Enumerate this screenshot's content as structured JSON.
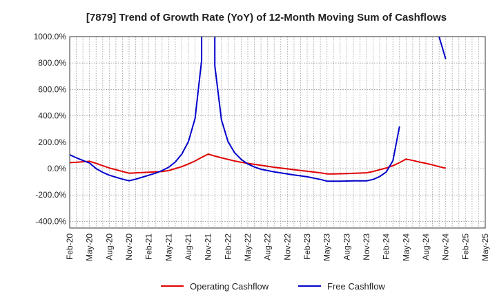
{
  "chart_data": {
    "type": "line",
    "title": "[7879]  Trend of Growth Rate (YoY) of 12-Month Moving Sum of Cashflows",
    "xlabel": "",
    "ylabel": "",
    "x_ticks": [
      "Feb-20",
      "May-20",
      "Aug-20",
      "Nov-20",
      "Feb-21",
      "May-21",
      "Aug-21",
      "Nov-21",
      "Feb-22",
      "May-22",
      "Aug-22",
      "Nov-22",
      "Feb-23",
      "May-23",
      "Aug-23",
      "Nov-23",
      "Feb-24",
      "May-24",
      "Aug-24",
      "Nov-24",
      "Feb-25",
      "May-25"
    ],
    "y_ticks": [
      "1000.0%",
      "800.0%",
      "600.0%",
      "400.0%",
      "200.0%",
      "0.0%",
      "-200.0%",
      "-400.0%"
    ],
    "ylim": [
      -450,
      1000
    ],
    "grid": true,
    "legend_position": "bottom",
    "series": [
      {
        "name": "Operating Cashflow",
        "color": "#e00000",
        "points": [
          [
            "Feb-20",
            45
          ],
          [
            "Mar-20",
            48
          ],
          [
            "Apr-20",
            52
          ],
          [
            "May-20",
            55
          ],
          [
            "Jun-20",
            40
          ],
          [
            "Jul-20",
            22
          ],
          [
            "Aug-20",
            5
          ],
          [
            "Sep-20",
            -8
          ],
          [
            "Oct-20",
            -22
          ],
          [
            "Nov-20",
            -35
          ],
          [
            "Dec-20",
            -33
          ],
          [
            "Jan-21",
            -30
          ],
          [
            "Feb-21",
            -27
          ],
          [
            "Mar-21",
            -25
          ],
          [
            "Apr-21",
            -22
          ],
          [
            "May-21",
            -15
          ],
          [
            "Jun-21",
            0
          ],
          [
            "Jul-21",
            15
          ],
          [
            "Aug-21",
            35
          ],
          [
            "Sep-21",
            58
          ],
          [
            "Oct-21",
            85
          ],
          [
            "Nov-21",
            110
          ],
          [
            "Dec-21",
            95
          ],
          [
            "Jan-22",
            82
          ],
          [
            "Feb-22",
            70
          ],
          [
            "Mar-22",
            58
          ],
          [
            "Apr-22",
            48
          ],
          [
            "May-22",
            40
          ],
          [
            "Jun-22",
            32
          ],
          [
            "Jul-22",
            25
          ],
          [
            "Aug-22",
            18
          ],
          [
            "Sep-22",
            10
          ],
          [
            "Oct-22",
            4
          ],
          [
            "Nov-22",
            -2
          ],
          [
            "Dec-22",
            -8
          ],
          [
            "Jan-23",
            -14
          ],
          [
            "Feb-23",
            -20
          ],
          [
            "Mar-23",
            -26
          ],
          [
            "Apr-23",
            -32
          ],
          [
            "May-23",
            -40
          ],
          [
            "Jun-23",
            -40
          ],
          [
            "Jul-23",
            -39
          ],
          [
            "Aug-23",
            -38
          ],
          [
            "Sep-23",
            -36
          ],
          [
            "Oct-23",
            -34
          ],
          [
            "Nov-23",
            -32
          ],
          [
            "Dec-23",
            -22
          ],
          [
            "Jan-24",
            -8
          ],
          [
            "Feb-24",
            5
          ],
          [
            "Mar-24",
            22
          ],
          [
            "Apr-24",
            45
          ],
          [
            "May-24",
            72
          ],
          [
            "Jun-24",
            62
          ],
          [
            "Jul-24",
            50
          ],
          [
            "Aug-24",
            40
          ],
          [
            "Sep-24",
            28
          ],
          [
            "Oct-24",
            15
          ],
          [
            "Nov-24",
            3
          ]
        ]
      },
      {
        "name": "Free Cashflow",
        "color": "#0000cc",
        "segments": [
          [
            [
              "Feb-20",
              105
            ],
            [
              "Mar-20",
              82
            ],
            [
              "Apr-20",
              62
            ],
            [
              "May-20",
              42
            ],
            [
              "Jun-20",
              0
            ],
            [
              "Jul-20",
              -28
            ],
            [
              "Aug-20",
              -50
            ],
            [
              "Sep-20",
              -65
            ],
            [
              "Oct-20",
              -80
            ],
            [
              "Nov-20",
              -92
            ],
            [
              "Dec-20",
              -80
            ],
            [
              "Jan-21",
              -65
            ],
            [
              "Feb-21",
              -50
            ],
            [
              "Mar-21",
              -35
            ],
            [
              "Apr-21",
              -15
            ],
            [
              "May-21",
              10
            ],
            [
              "Jun-21",
              50
            ],
            [
              "Jul-21",
              110
            ],
            [
              "Aug-21",
              205
            ],
            [
              "Sep-21",
              380
            ],
            [
              "Oct-21",
              820
            ],
            [
              "Oct-21",
              1000
            ]
          ],
          [
            [
              "Dec-21",
              1000
            ],
            [
              "Dec-21",
              780
            ],
            [
              "Jan-22",
              370
            ],
            [
              "Feb-22",
              205
            ],
            [
              "Mar-22",
              120
            ],
            [
              "Apr-22",
              70
            ],
            [
              "May-22",
              35
            ],
            [
              "Jun-22",
              12
            ],
            [
              "Jul-22",
              -5
            ],
            [
              "Aug-22",
              -15
            ],
            [
              "Sep-22",
              -25
            ],
            [
              "Oct-22",
              -33
            ],
            [
              "Nov-22",
              -40
            ],
            [
              "Dec-22",
              -48
            ],
            [
              "Jan-23",
              -55
            ],
            [
              "Feb-23",
              -62
            ],
            [
              "Mar-23",
              -72
            ],
            [
              "Apr-23",
              -82
            ],
            [
              "May-23",
              -95
            ],
            [
              "Jun-23",
              -95
            ],
            [
              "Jul-23",
              -95
            ],
            [
              "Aug-23",
              -94
            ],
            [
              "Sep-23",
              -93
            ],
            [
              "Oct-23",
              -93
            ],
            [
              "Nov-23",
              -93
            ],
            [
              "Dec-23",
              -82
            ],
            [
              "Jan-24",
              -60
            ],
            [
              "Feb-24",
              -25
            ],
            [
              "Mar-24",
              60
            ],
            [
              "Apr-24",
              320
            ]
          ],
          [
            [
              "Oct-24",
              1000
            ],
            [
              "Nov-24",
              830
            ]
          ]
        ]
      }
    ]
  }
}
